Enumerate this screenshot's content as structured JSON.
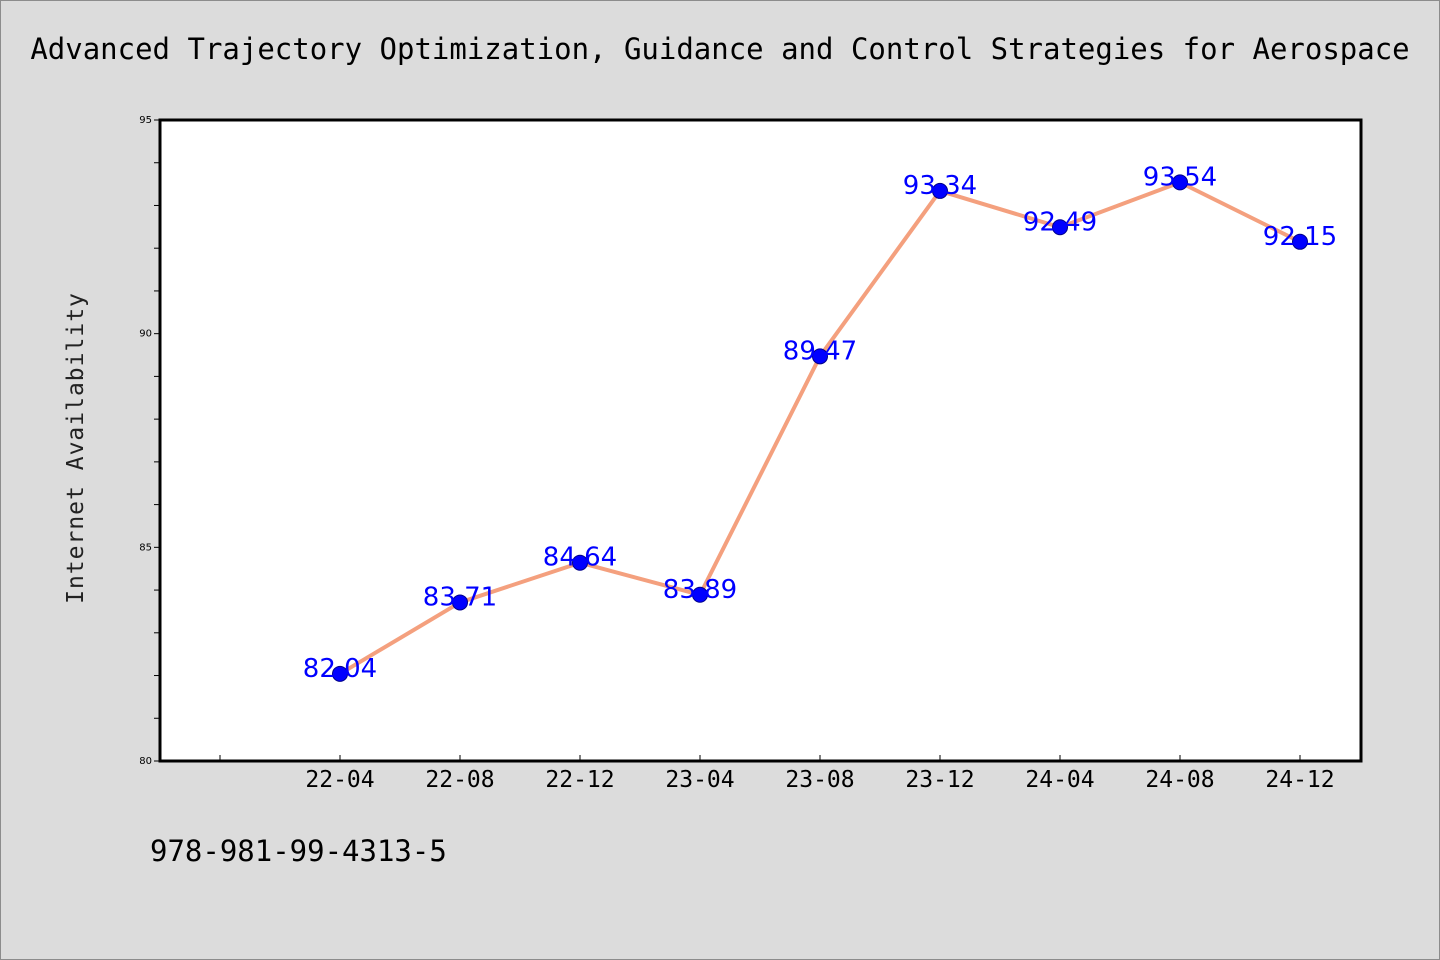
{
  "colors": {
    "background": "#dcdcdc",
    "plot_area": "#ffffff",
    "line": "#f4a07e",
    "marker": "#0000ff",
    "data_label": "#0000ff"
  },
  "footnote": "978-981-99-4313-5",
  "chart_data": {
    "type": "line",
    "title": "Advanced Trajectory Optimization, Guidance and Control Strategies for Aerospace",
    "xlabel": "",
    "ylabel": "Internet Availability",
    "categories": [
      "22-04",
      "22-08",
      "22-12",
      "23-04",
      "23-08",
      "23-12",
      "24-04",
      "24-08",
      "24-12"
    ],
    "series": [
      {
        "values": [
          82.04,
          83.71,
          84.64,
          83.89,
          89.47,
          93.34,
          92.49,
          93.54,
          92.15
        ]
      }
    ],
    "data_labels": [
      "82.04",
      "83.71",
      "84.64",
      "83.89",
      "89.47",
      "93.34",
      "92.49",
      "93.54",
      "92.15"
    ],
    "ylim": [
      80,
      95
    ],
    "yticks": [
      80,
      85,
      90,
      95
    ],
    "y_minor_step": 1,
    "grid": false,
    "legend": "none"
  }
}
